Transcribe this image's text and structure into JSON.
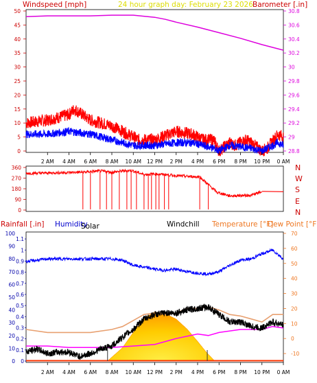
{
  "header": {
    "windspeed_label": "Windspeed [mph]",
    "subtitle": "24 hour graph day:  February 23 2026",
    "barometer_label": "Barometer [.in]"
  },
  "compass_labels": [
    "N",
    "W",
    "S",
    "E",
    "N"
  ],
  "bottom_header": {
    "rainfall_label": "Rainfall [.in]",
    "humidity_label": "Humidity",
    "solar_label": "Solar",
    "windchill_label": "Windchill",
    "temperature_label": "Temperature [°F]",
    "dewpoint_label": "Dew Point [°F]"
  },
  "colors": {
    "windspeed": "#ff0000",
    "windavg": "#0000ff",
    "barometer": "#dd00dd",
    "direction": "#ff0000",
    "humidity": "#0000ff",
    "temperature": "#e8a070",
    "dewpoint": "#ff00ff",
    "windchill": "#000000",
    "solar": "#ffcc00",
    "rain_axis": "#0000aa",
    "temp_axis": "#ff6600"
  },
  "chart_data": [
    {
      "type": "line",
      "name": "wind-barometer",
      "x_ticks": [
        "2 AM",
        "4 AM",
        "6 AM",
        "8 AM",
        "10 AM",
        "12 PM",
        "2 PM",
        "4 PM",
        "6 PM",
        "8 PM",
        "10 PM",
        "0 AM"
      ],
      "y_left": {
        "label": "Windspeed [mph]",
        "ticks": [
          0,
          5,
          10,
          15,
          20,
          25,
          30,
          35,
          40,
          45,
          50
        ],
        "ylim": [
          0,
          50
        ]
      },
      "y_right": {
        "label": "Barometer [.in]",
        "ticks": [
          "28.8",
          "29",
          "29.2",
          "29.4",
          "29.6",
          "29.8",
          "30",
          "30.2",
          "30.4",
          "30.6",
          "30.8"
        ],
        "ylim": [
          28.8,
          30.8
        ]
      },
      "series": [
        {
          "key": "windspeed",
          "hours": [
            0,
            2,
            4,
            4.5,
            6,
            8,
            10,
            10.5,
            12,
            14,
            15.5,
            16.5,
            17.5,
            18,
            19,
            19.5,
            20.5,
            21,
            22,
            22.5,
            23.5,
            24
          ],
          "values": [
            10,
            11,
            13,
            15,
            11,
            9,
            5,
            4,
            4,
            7,
            6,
            4,
            4,
            0,
            3,
            2,
            4,
            3,
            0,
            1,
            6,
            5
          ]
        },
        {
          "key": "windavg",
          "hours": [
            0,
            2,
            4,
            6,
            8,
            10,
            12,
            14,
            15.5,
            16.5,
            17.5,
            18,
            19,
            21,
            22,
            23.5,
            24
          ],
          "values": [
            6,
            6,
            7,
            6,
            4,
            2,
            2,
            3,
            3,
            2,
            1,
            0,
            2,
            1,
            0,
            3,
            2
          ]
        },
        {
          "key": "barometer",
          "hours": [
            0,
            2,
            4,
            6,
            8,
            10,
            12,
            13,
            14,
            16,
            18,
            20,
            22,
            24
          ],
          "values": [
            30.72,
            30.73,
            30.73,
            30.73,
            30.74,
            30.74,
            30.71,
            30.68,
            30.64,
            30.57,
            30.49,
            30.41,
            30.32,
            30.24
          ]
        }
      ]
    },
    {
      "type": "line",
      "name": "wind-direction",
      "y_ticks": [
        0,
        90,
        180,
        270,
        360
      ],
      "ylim": [
        0,
        360
      ],
      "series": [
        {
          "key": "direction",
          "hours": [
            0,
            5.3,
            6,
            6.9,
            7.5,
            8,
            9,
            9.8,
            10,
            11,
            12,
            13,
            14,
            15,
            16.2,
            17.8,
            19,
            21,
            22,
            22.5,
            24
          ],
          "values": [
            310,
            320,
            325,
            330,
            325,
            320,
            330,
            335,
            330,
            300,
            305,
            300,
            290,
            285,
            280,
            150,
            120,
            125,
            155,
            160,
            155
          ]
        }
      ]
    },
    {
      "type": "line",
      "name": "temperature-humidity-solar",
      "y_left": {
        "label": "Humidity",
        "ticks": [
          0,
          10,
          20,
          30,
          40,
          50,
          60,
          70,
          80,
          90,
          100
        ]
      },
      "y_rain": {
        "label": "Rainfall [.in]",
        "ticks": [
          "0",
          "0.1",
          "0.2",
          "0.3",
          "0.4",
          "0.5",
          "0.6",
          "0.7",
          "0.8",
          "0.9",
          "1",
          "1.1"
        ]
      },
      "y_right": {
        "label": "Temperature [°F]",
        "ticks": [
          -10,
          0,
          10,
          20,
          30,
          40,
          50,
          60,
          70
        ],
        "ylim": [
          -15,
          70
        ]
      },
      "series": [
        {
          "key": "humidity",
          "hours": [
            0,
            2,
            4,
            6,
            8,
            9,
            10,
            12,
            13,
            14,
            15,
            16,
            17,
            18,
            19,
            20,
            21,
            22,
            23,
            24
          ],
          "values": [
            78,
            80,
            80,
            80,
            80,
            79,
            75,
            72,
            71,
            72,
            70,
            69,
            68,
            70,
            75,
            79,
            80,
            84,
            87,
            80
          ]
        },
        {
          "key": "temperature",
          "hours": [
            0,
            2,
            4,
            6,
            8,
            9,
            10,
            11,
            12,
            13,
            14,
            15,
            16,
            17,
            18,
            19,
            20,
            21,
            22,
            23,
            24
          ],
          "values": [
            6,
            4,
            4,
            4,
            6,
            8,
            12,
            16,
            17,
            16,
            17,
            20,
            20,
            21,
            19,
            16,
            15,
            13,
            11,
            16,
            16
          ]
        },
        {
          "key": "dewpoint",
          "hours": [
            0,
            2,
            4,
            6,
            8,
            10,
            12,
            14,
            16,
            17,
            18,
            20,
            22,
            23,
            24
          ],
          "values": [
            -5,
            -5,
            -6,
            -6,
            -6,
            -5,
            -4,
            0,
            3,
            2,
            4,
            6,
            6,
            8,
            7
          ]
        },
        {
          "key": "windchill",
          "hours": [
            0,
            1,
            2,
            3,
            4,
            5,
            6,
            7,
            8,
            9,
            10,
            11,
            12,
            13,
            14,
            15,
            16,
            17,
            18,
            19,
            20,
            21,
            22,
            23,
            24
          ],
          "values": [
            -9,
            -7,
            -10,
            -9,
            -9,
            -12,
            -10,
            -7,
            -5,
            1,
            6,
            13,
            16,
            17,
            17,
            19,
            20,
            21,
            16,
            11,
            11,
            8,
            7,
            11,
            9
          ]
        },
        {
          "key": "solar",
          "hours": [
            7.6,
            9,
            10,
            11,
            12,
            13,
            14,
            15,
            16,
            16.8,
            17.6
          ],
          "values": [
            0,
            15,
            32,
            48,
            55,
            53,
            47,
            36,
            22,
            10,
            0
          ]
        }
      ]
    }
  ]
}
